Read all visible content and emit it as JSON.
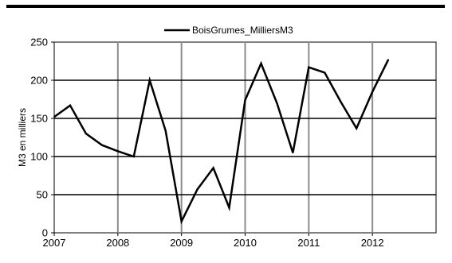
{
  "chart_data": {
    "type": "line",
    "legend": "BoisGrumes_MilliersM3",
    "legend_position": "top-center",
    "ylabel": "M3 en milliers",
    "y_ticks": [
      "0",
      "50",
      "100",
      "150",
      "200",
      "250"
    ],
    "x_ticks": [
      "2007",
      "2008",
      "2009",
      "2010",
      "2011",
      "2012"
    ],
    "ylim": [
      0,
      250
    ],
    "xlim": [
      2007,
      2013
    ],
    "grid": {
      "vertical": "gray",
      "horizontal": "black"
    },
    "series": [
      {
        "name": "BoisGrumes_MilliersM3",
        "x": [
          2007.0,
          2007.25,
          2007.5,
          2007.75,
          2008.0,
          2008.25,
          2008.5,
          2008.75,
          2009.0,
          2009.25,
          2009.5,
          2009.75,
          2010.0,
          2010.25,
          2010.5,
          2010.75,
          2011.0,
          2011.25,
          2011.5,
          2011.75,
          2012.0,
          2012.25
        ],
        "values": [
          152,
          167,
          130,
          115,
          107,
          100,
          200,
          134,
          15,
          57,
          85,
          33,
          174,
          222,
          170,
          105,
          217,
          210,
          172,
          137,
          185,
          227
        ]
      }
    ]
  }
}
